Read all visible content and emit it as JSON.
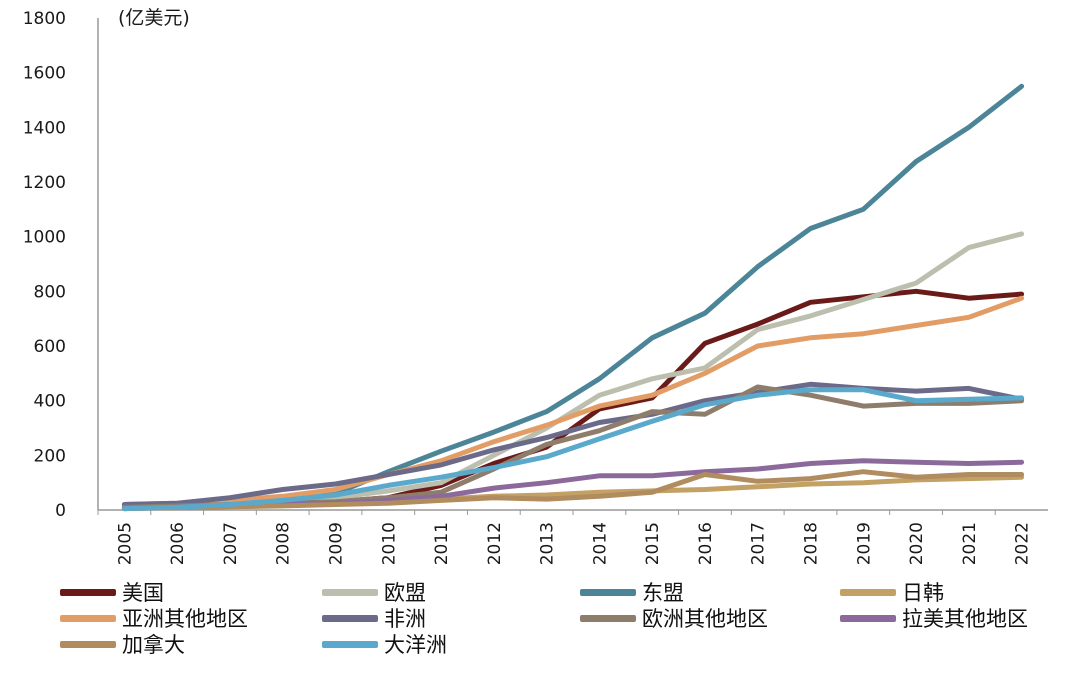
{
  "chart_data": {
    "type": "line",
    "unit_label": "(亿美元)",
    "categories": [
      "2005",
      "2006",
      "2007",
      "2008",
      "2009",
      "2010",
      "2011",
      "2012",
      "2013",
      "2014",
      "2015",
      "2016",
      "2017",
      "2018",
      "2019",
      "2020",
      "2021",
      "2022"
    ],
    "ylim": [
      0,
      1800
    ],
    "yticks": [
      "0",
      "200",
      "400",
      "600",
      "800",
      "1000",
      "1200",
      "1400",
      "1600",
      "1800"
    ],
    "grid": false,
    "legend_position": "bottom",
    "series": [
      {
        "name": "美国",
        "color": "#6b1a1a",
        "values": [
          10,
          15,
          20,
          25,
          30,
          45,
          90,
          170,
          230,
          370,
          410,
          610,
          680,
          760,
          780,
          800,
          775,
          790
        ]
      },
      {
        "name": "欧盟",
        "color": "#bcbfae",
        "values": [
          10,
          15,
          20,
          30,
          45,
          70,
          100,
          200,
          300,
          420,
          480,
          520,
          660,
          710,
          770,
          830,
          960,
          1010
        ]
      },
      {
        "name": "东盟",
        "color": "#4c8597",
        "values": [
          10,
          15,
          25,
          40,
          60,
          140,
          215,
          285,
          360,
          480,
          630,
          720,
          890,
          1030,
          1100,
          1275,
          1400,
          1550
        ]
      },
      {
        "name": "日韩",
        "color": "#c3a064",
        "values": [
          5,
          10,
          15,
          20,
          25,
          30,
          40,
          50,
          55,
          65,
          70,
          75,
          85,
          95,
          100,
          110,
          115,
          120
        ]
      },
      {
        "name": "亚洲其他地区",
        "color": "#e29d66",
        "values": [
          20,
          25,
          35,
          50,
          75,
          130,
          180,
          250,
          310,
          380,
          420,
          500,
          600,
          630,
          645,
          675,
          705,
          775
        ]
      },
      {
        "name": "非洲",
        "color": "#6b6a89",
        "values": [
          20,
          25,
          45,
          75,
          95,
          130,
          165,
          220,
          265,
          320,
          350,
          400,
          430,
          460,
          445,
          435,
          445,
          405
        ]
      },
      {
        "name": "欧洲其他地区",
        "color": "#8f7d6b",
        "values": [
          10,
          15,
          20,
          25,
          30,
          45,
          65,
          150,
          240,
          290,
          360,
          350,
          450,
          420,
          380,
          390,
          390,
          400
        ]
      },
      {
        "name": "拉美其他地区",
        "color": "#8b6a9b",
        "values": [
          5,
          10,
          15,
          20,
          25,
          35,
          50,
          80,
          100,
          125,
          125,
          140,
          150,
          170,
          180,
          175,
          170,
          175
        ]
      },
      {
        "name": "加拿大",
        "color": "#b08c5e",
        "values": [
          5,
          8,
          12,
          15,
          20,
          25,
          35,
          45,
          40,
          50,
          65,
          130,
          105,
          115,
          140,
          120,
          130,
          130
        ]
      },
      {
        "name": "大洋洲",
        "color": "#5aa9cc",
        "values": [
          5,
          10,
          20,
          35,
          55,
          90,
          120,
          155,
          195,
          260,
          325,
          385,
          420,
          440,
          440,
          400,
          405,
          410
        ]
      }
    ]
  }
}
